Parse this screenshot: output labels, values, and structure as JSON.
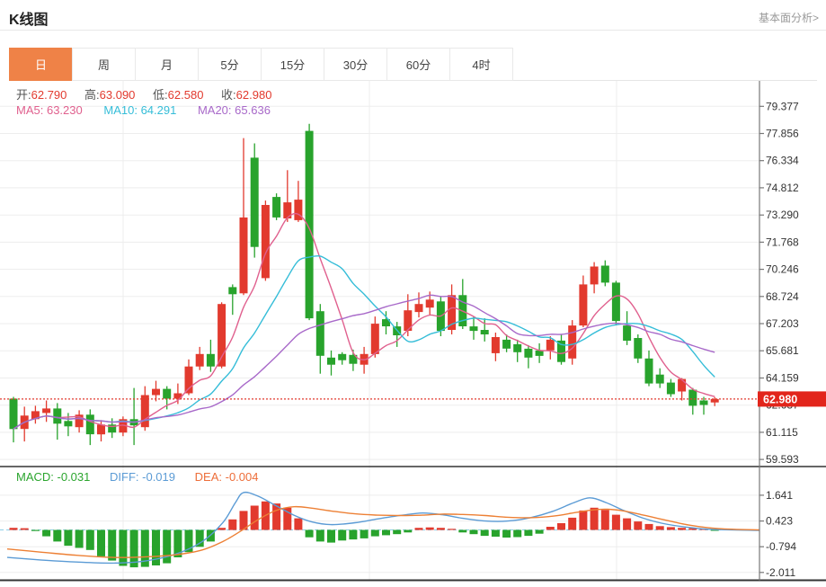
{
  "header": {
    "title": "K线图",
    "link": "基本面分析>"
  },
  "tabs": {
    "items": [
      "日",
      "周",
      "月",
      "5分",
      "15分",
      "30分",
      "60分",
      "4时"
    ],
    "active": "日"
  },
  "quote": {
    "open_label": "开:",
    "open": "62.790",
    "high_label": "高:",
    "high": "63.090",
    "low_label": "低:",
    "low": "62.580",
    "close_label": "收:",
    "close": "62.980"
  },
  "ma": {
    "ma5_label": "MA5:",
    "ma5": "63.230",
    "ma10_label": "MA10:",
    "ma10": "64.291",
    "ma20_label": "MA20:",
    "ma20": "65.636"
  },
  "macd_info": {
    "macd_label": "MACD:",
    "macd": "-0.031",
    "diff_label": "DIFF:",
    "diff": "-0.019",
    "dea_label": "DEA:",
    "dea": "-0.004"
  },
  "price_badge": "62.980",
  "colors": {
    "up": "#e23a2e",
    "down": "#28a32c",
    "ma5": "#e0608e",
    "ma10": "#35bdd8",
    "ma20": "#a869c9",
    "diff_line": "#5b9bd5",
    "dea_line": "#ed8035",
    "tab_active": "#ef8247",
    "badge": "#e2251b",
    "current_price_line": "#e23a2e",
    "zero_dash": "#8fcfe8",
    "grid": "#ededed",
    "axis": "#777",
    "separator": "#333",
    "tick_text": "#333"
  },
  "chart_data": {
    "type": "candlestick+macd",
    "price_axis": {
      "ticks": [
        79.377,
        77.856,
        76.334,
        74.812,
        73.29,
        71.768,
        70.246,
        68.724,
        67.203,
        65.681,
        64.159,
        62.637,
        61.115,
        59.593
      ],
      "current_price": 62.98
    },
    "ma_windows": [
      5,
      10,
      20
    ],
    "candles_format": [
      "open",
      "high",
      "low",
      "close"
    ],
    "candles": [
      [
        63.0,
        63.1,
        60.55,
        61.3
      ],
      [
        61.3,
        62.55,
        60.6,
        62.05
      ],
      [
        61.85,
        62.6,
        61.6,
        62.3
      ],
      [
        62.2,
        62.9,
        61.7,
        62.45
      ],
      [
        62.45,
        62.75,
        60.7,
        61.6
      ],
      [
        61.75,
        62.2,
        60.9,
        61.45
      ],
      [
        61.4,
        62.35,
        61.1,
        62.1
      ],
      [
        62.1,
        62.4,
        60.4,
        61.0
      ],
      [
        61.0,
        61.8,
        60.6,
        61.55
      ],
      [
        61.55,
        61.9,
        60.8,
        61.1
      ],
      [
        61.1,
        62.0,
        60.9,
        61.85
      ],
      [
        61.85,
        63.6,
        60.4,
        61.5
      ],
      [
        61.4,
        63.7,
        61.2,
        63.2
      ],
      [
        63.2,
        64.0,
        62.85,
        63.55
      ],
      [
        63.55,
        63.7,
        62.4,
        63.0
      ],
      [
        63.0,
        63.85,
        62.7,
        63.3
      ],
      [
        63.3,
        65.2,
        63.2,
        64.8
      ],
      [
        64.8,
        65.9,
        64.6,
        65.5
      ],
      [
        65.5,
        66.3,
        64.5,
        64.8
      ],
      [
        64.8,
        68.4,
        64.7,
        68.3
      ],
      [
        69.25,
        69.4,
        67.7,
        68.85
      ],
      [
        68.9,
        77.6,
        68.8,
        73.15
      ],
      [
        76.5,
        77.3,
        70.9,
        71.5
      ],
      [
        69.75,
        74.1,
        69.6,
        73.85
      ],
      [
        74.3,
        74.5,
        73.0,
        73.15
      ],
      [
        73.1,
        75.8,
        72.9,
        74.0
      ],
      [
        73.0,
        75.2,
        72.9,
        74.15
      ],
      [
        78.0,
        78.4,
        67.4,
        67.5
      ],
      [
        67.9,
        68.3,
        64.4,
        65.4
      ],
      [
        65.3,
        65.7,
        64.3,
        64.9
      ],
      [
        65.5,
        65.6,
        64.9,
        65.15
      ],
      [
        65.45,
        65.75,
        64.55,
        64.95
      ],
      [
        64.9,
        65.9,
        64.4,
        65.5
      ],
      [
        65.5,
        67.6,
        65.3,
        67.2
      ],
      [
        67.45,
        67.9,
        66.6,
        67.05
      ],
      [
        67.05,
        67.3,
        65.9,
        66.55
      ],
      [
        66.8,
        68.85,
        66.5,
        67.95
      ],
      [
        67.85,
        68.95,
        67.55,
        68.3
      ],
      [
        68.1,
        69.0,
        67.7,
        68.55
      ],
      [
        68.45,
        68.7,
        66.5,
        66.8
      ],
      [
        66.85,
        69.4,
        66.6,
        68.8
      ],
      [
        68.8,
        69.7,
        66.9,
        67.05
      ],
      [
        67.05,
        67.6,
        66.3,
        66.8
      ],
      [
        66.85,
        67.5,
        66.2,
        66.6
      ],
      [
        65.55,
        66.7,
        65.1,
        66.45
      ],
      [
        66.3,
        66.6,
        65.6,
        65.8
      ],
      [
        66.05,
        66.3,
        65.05,
        65.6
      ],
      [
        65.8,
        66.0,
        64.7,
        65.3
      ],
      [
        65.7,
        66.1,
        65.0,
        65.4
      ],
      [
        65.7,
        66.5,
        65.2,
        66.3
      ],
      [
        66.25,
        66.6,
        64.9,
        65.05
      ],
      [
        65.25,
        67.4,
        64.9,
        67.1
      ],
      [
        67.1,
        69.9,
        67.0,
        69.4
      ],
      [
        69.4,
        70.65,
        68.9,
        70.4
      ],
      [
        70.45,
        70.75,
        69.3,
        69.5
      ],
      [
        69.5,
        69.6,
        67.1,
        67.35
      ],
      [
        67.1,
        67.9,
        66.0,
        66.25
      ],
      [
        66.4,
        66.6,
        65.0,
        65.25
      ],
      [
        65.25,
        65.7,
        63.7,
        63.85
      ],
      [
        64.35,
        64.7,
        63.6,
        63.85
      ],
      [
        63.9,
        64.1,
        63.1,
        63.25
      ],
      [
        63.4,
        64.15,
        62.9,
        64.1
      ],
      [
        63.5,
        63.6,
        62.1,
        62.6
      ],
      [
        62.9,
        63.1,
        62.1,
        62.65
      ],
      [
        62.79,
        63.09,
        62.58,
        62.98
      ]
    ],
    "macd": {
      "ticks": [
        1.641,
        0.423,
        -0.794,
        -2.011
      ],
      "histogram": [
        0.1,
        0.08,
        -0.05,
        -0.3,
        -0.55,
        -0.75,
        -0.85,
        -0.95,
        -1.25,
        -1.45,
        -1.7,
        -1.77,
        -1.75,
        -1.68,
        -1.58,
        -1.3,
        -1.05,
        -0.8,
        -0.55,
        0.1,
        0.5,
        0.9,
        1.15,
        1.35,
        1.25,
        1.05,
        0.55,
        -0.35,
        -0.55,
        -0.6,
        -0.5,
        -0.45,
        -0.4,
        -0.3,
        -0.25,
        -0.2,
        -0.12,
        0.1,
        0.12,
        0.1,
        0.05,
        -0.12,
        -0.2,
        -0.28,
        -0.32,
        -0.36,
        -0.34,
        -0.28,
        -0.18,
        0.15,
        0.32,
        0.58,
        0.92,
        1.05,
        0.95,
        0.72,
        0.55,
        0.4,
        0.28,
        0.18,
        0.13,
        0.1,
        0.08,
        0.05,
        -0.03
      ],
      "diff_points": [
        [
          8,
          -1.3
        ],
        [
          45,
          -1.42
        ],
        [
          85,
          -1.52
        ],
        [
          125,
          -1.57
        ],
        [
          160,
          -1.48
        ],
        [
          195,
          -1.15
        ],
        [
          225,
          -0.55
        ],
        [
          248,
          0.35
        ],
        [
          262,
          1.3
        ],
        [
          271,
          1.77
        ],
        [
          287,
          1.6
        ],
        [
          307,
          1.15
        ],
        [
          327,
          0.7
        ],
        [
          347,
          0.38
        ],
        [
          368,
          0.25
        ],
        [
          395,
          0.34
        ],
        [
          420,
          0.52
        ],
        [
          448,
          0.7
        ],
        [
          470,
          0.8
        ],
        [
          492,
          0.72
        ],
        [
          515,
          0.55
        ],
        [
          540,
          0.42
        ],
        [
          565,
          0.42
        ],
        [
          590,
          0.58
        ],
        [
          615,
          0.88
        ],
        [
          638,
          1.28
        ],
        [
          656,
          1.52
        ],
        [
          674,
          1.3
        ],
        [
          694,
          0.92
        ],
        [
          714,
          0.58
        ],
        [
          736,
          0.32
        ],
        [
          762,
          0.14
        ],
        [
          790,
          0.03
        ],
        [
          845,
          -0.02
        ]
      ],
      "dea_points": [
        [
          8,
          -0.9
        ],
        [
          45,
          -1.05
        ],
        [
          85,
          -1.2
        ],
        [
          125,
          -1.3
        ],
        [
          160,
          -1.28
        ],
        [
          195,
          -1.18
        ],
        [
          225,
          -0.95
        ],
        [
          248,
          -0.55
        ],
        [
          268,
          -0.05
        ],
        [
          287,
          0.48
        ],
        [
          307,
          0.92
        ],
        [
          327,
          1.1
        ],
        [
          347,
          1.03
        ],
        [
          368,
          0.9
        ],
        [
          395,
          0.76
        ],
        [
          420,
          0.7
        ],
        [
          448,
          0.68
        ],
        [
          470,
          0.7
        ],
        [
          492,
          0.75
        ],
        [
          515,
          0.73
        ],
        [
          540,
          0.68
        ],
        [
          565,
          0.6
        ],
        [
          590,
          0.58
        ],
        [
          615,
          0.65
        ],
        [
          640,
          0.82
        ],
        [
          660,
          0.95
        ],
        [
          676,
          0.98
        ],
        [
          694,
          0.9
        ],
        [
          716,
          0.7
        ],
        [
          742,
          0.45
        ],
        [
          768,
          0.22
        ],
        [
          800,
          0.06
        ],
        [
          845,
          0.0
        ]
      ]
    }
  }
}
